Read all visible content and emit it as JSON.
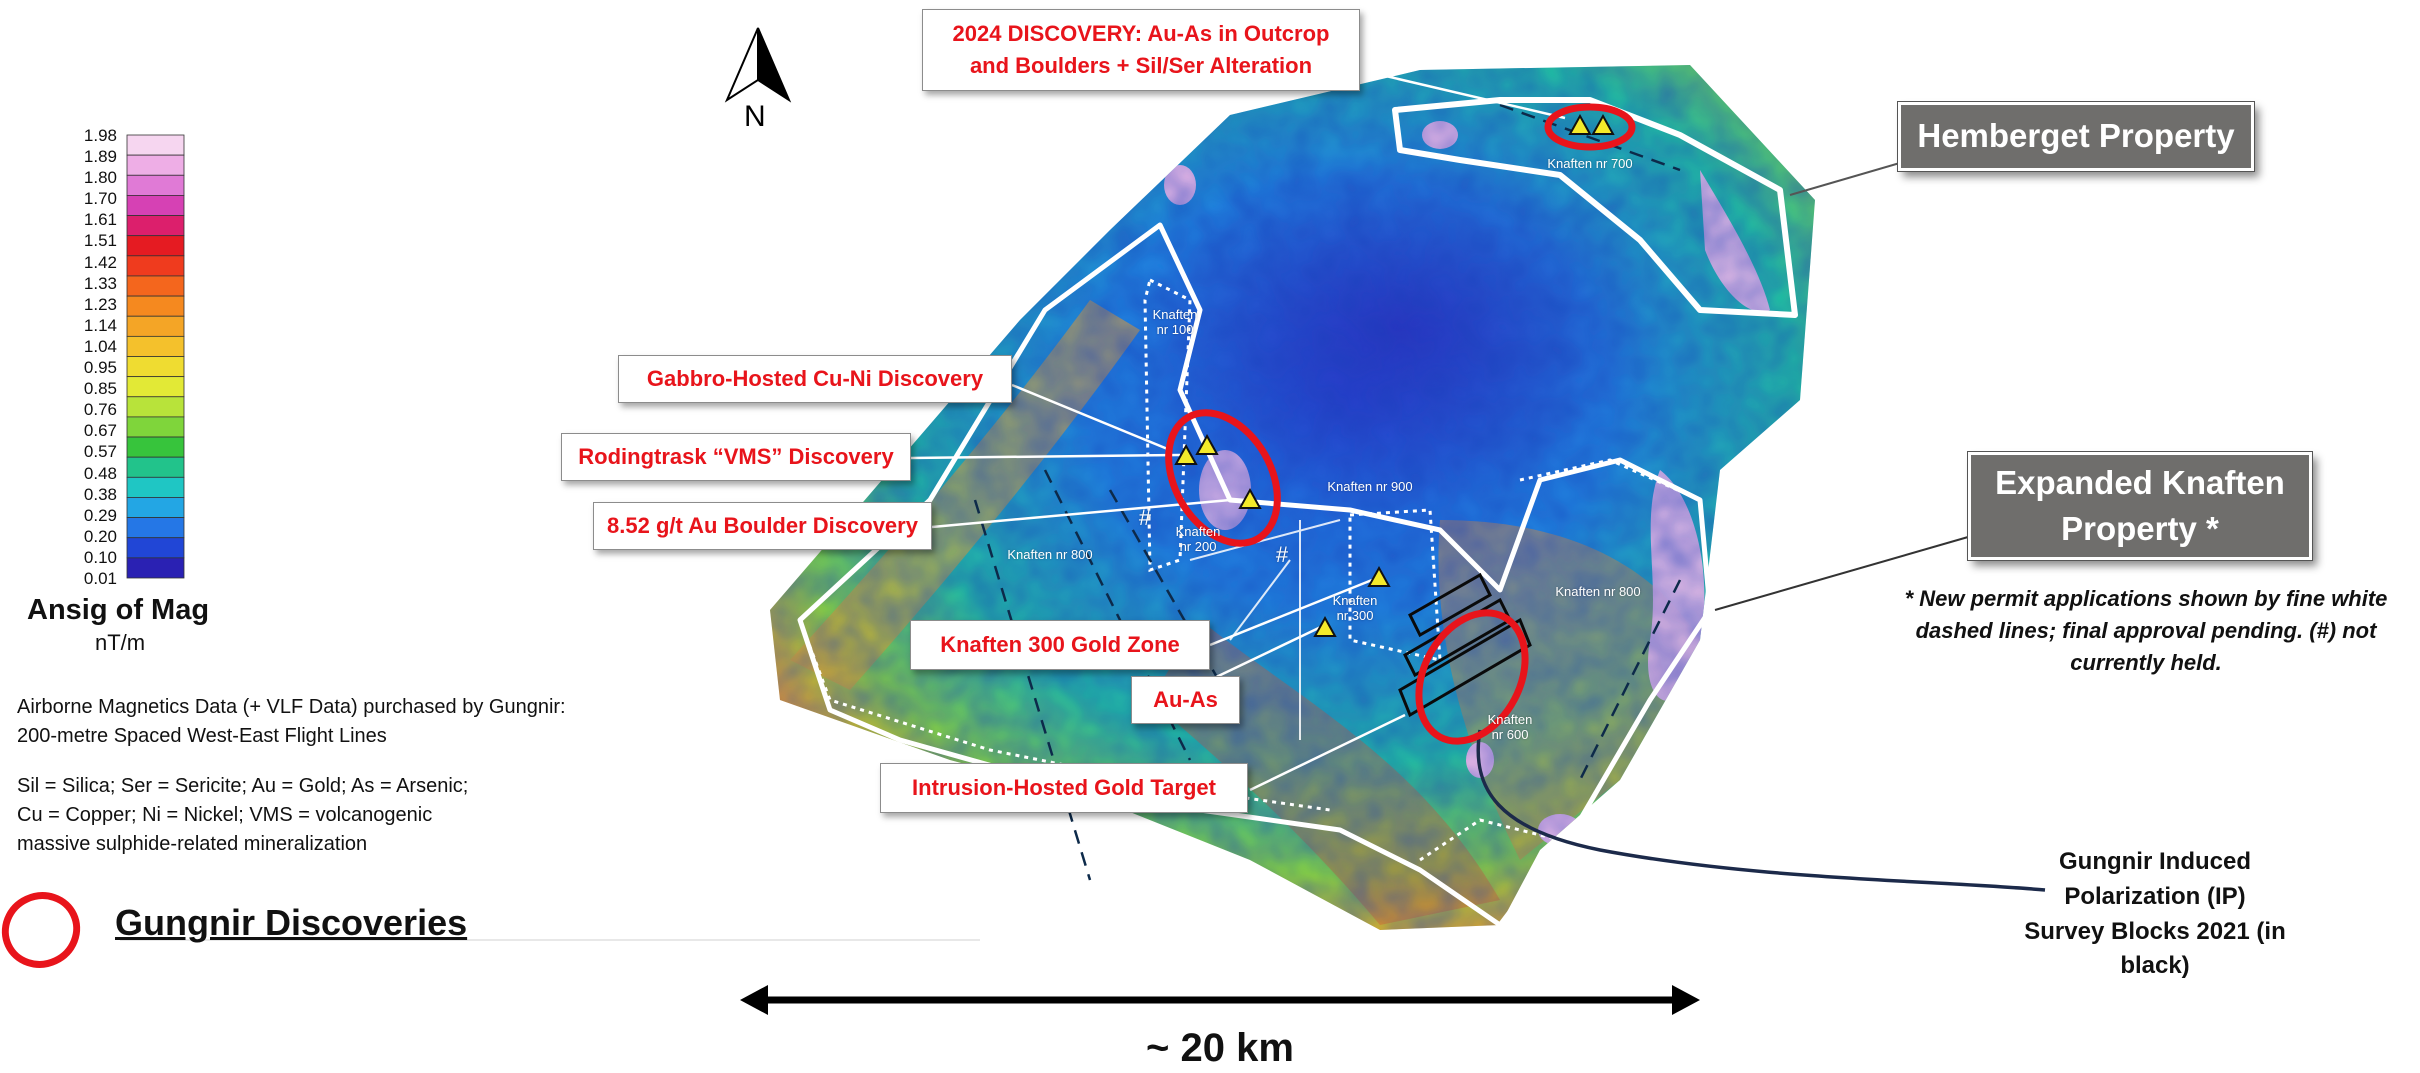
{
  "title_callouts": {
    "discovery_2024": "2024 DISCOVERY: Au-As in Outcrop\nand Boulders + Sil/Ser Alteration",
    "gabbro": "Gabbro-Hosted Cu-Ni Discovery",
    "rodingtrask": "Rodingtrask “VMS” Discovery",
    "au_boulder": "8.52 g/t Au Boulder Discovery",
    "knaften_300": "Knaften 300 Gold Zone",
    "au_as": "Au-As",
    "intrusion": "Intrusion-Hosted Gold Target"
  },
  "properties": {
    "hemberget": "Hemberget Property",
    "expanded_knaften": "Expanded Knaften\nProperty *"
  },
  "permit_note": "* New permit applications shown by fine white\ndashed lines; final approval pending. (#) not\ncurrently held.",
  "ip_survey_label": "Gungnir Induced\nPolarization (IP)\nSurvey Blocks 2021 (in black)",
  "zones": {
    "nr700": "Knaften nr 700",
    "nr100": "Knaften\nnr 100",
    "nr900": "Knaften nr 900",
    "nr200": "Knaften\nnr 200",
    "nr800_w": "Knaften nr 800",
    "nr300": "Knaften\nnr 300",
    "nr800_e": "Knaften nr 800",
    "nr600": "Knaften\nnr 600"
  },
  "hash_mark": "#",
  "north_label": "N",
  "scale_label": "~ 20 km",
  "legend": {
    "title": "Ansig of Mag",
    "unit": "nT/m",
    "ticks": [
      "1.98",
      "1.89",
      "1.80",
      "1.70",
      "1.61",
      "1.51",
      "1.42",
      "1.33",
      "1.23",
      "1.14",
      "1.04",
      "0.95",
      "0.85",
      "0.76",
      "0.67",
      "0.57",
      "0.48",
      "0.38",
      "0.29",
      "0.20",
      "0.10",
      "0.01"
    ],
    "colors": [
      "#f6d6f0",
      "#eeaee6",
      "#e07ad6",
      "#d641b4",
      "#dc1f6c",
      "#e51b22",
      "#ef3b1e",
      "#f4661d",
      "#f5891f",
      "#f4a526",
      "#f4c12c",
      "#efdc31",
      "#e2e936",
      "#b8e33a",
      "#7fd53b",
      "#37c43c",
      "#22c38b",
      "#1fc6c4",
      "#23a6e4",
      "#2577e6",
      "#2146d6",
      "#2a21b3"
    ]
  },
  "notes": {
    "airborne": "Airborne Magnetics Data (+ VLF Data) purchased by Gungnir:\n200-metre Spaced West-East Flight Lines",
    "abbrev": "Sil = Silica; Ser = Sericite; Au = Gold; As = Arsenic;\nCu = Copper; Ni = Nickel; VMS = volcanogenic\nmassive sulphide-related mineralization"
  },
  "discoveries_legend": "Gungnir Discoveries",
  "colors": {
    "accent_red": "#e8141b",
    "callout_border": "#8c8c8c",
    "property_box": "#6f6e6c",
    "ip_leader": "#1c2a4a"
  }
}
